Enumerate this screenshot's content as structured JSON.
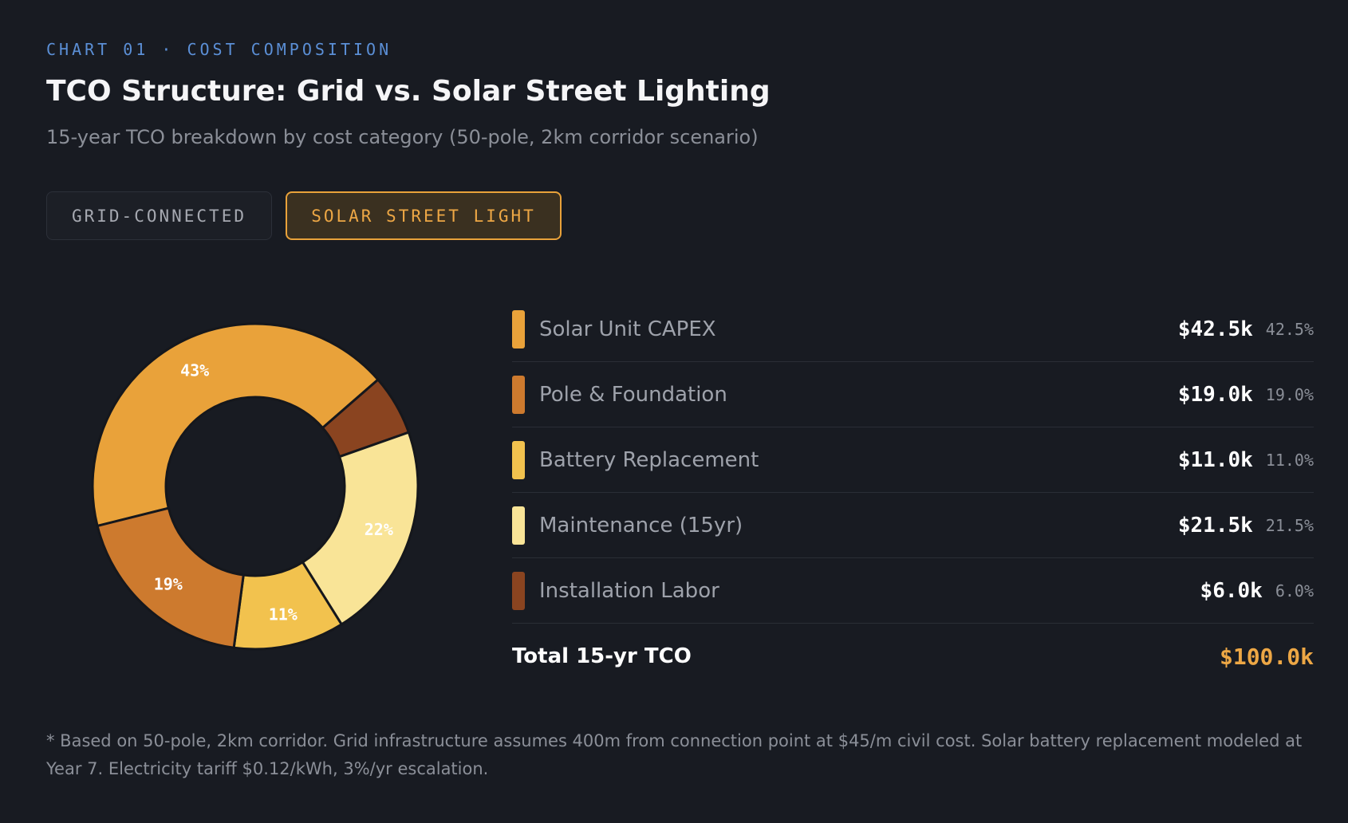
{
  "header": {
    "eyebrow": "CHART 01 · COST COMPOSITION",
    "title": "TCO Structure: Grid vs. Solar Street Lighting",
    "subtitle": "15-year TCO breakdown by cost category (50-pole, 2km corridor scenario)"
  },
  "tabs": [
    {
      "label": "GRID-CONNECTED",
      "active": false
    },
    {
      "label": "SOLAR STREET LIGHT",
      "active": true
    }
  ],
  "colors": {
    "accent": "#eda745",
    "background": "#181b22"
  },
  "chart_data": {
    "type": "pie",
    "categories": [
      "Solar Unit CAPEX",
      "Pole & Foundation",
      "Battery Replacement",
      "Maintenance (15yr)",
      "Installation Labor"
    ],
    "values": [
      42.5,
      19.0,
      11.0,
      21.5,
      6.0
    ],
    "colors": [
      "#e9a23a",
      "#cd7a2e",
      "#f2c24e",
      "#f9e497",
      "#8a4420"
    ],
    "slice_labels": [
      "43%",
      "19%",
      "11%",
      "22%",
      ""
    ]
  },
  "legend": {
    "rows": [
      {
        "label": "Solar Unit CAPEX",
        "value": "$42.5k",
        "pct": "42.5%",
        "color": "#e9a23a"
      },
      {
        "label": "Pole & Foundation",
        "value": "$19.0k",
        "pct": "19.0%",
        "color": "#cd7a2e"
      },
      {
        "label": "Battery Replacement",
        "value": "$11.0k",
        "pct": "11.0%",
        "color": "#f2c24e"
      },
      {
        "label": "Maintenance (15yr)",
        "value": "$21.5k",
        "pct": "21.5%",
        "color": "#f9e497"
      },
      {
        "label": "Installation Labor",
        "value": "$6.0k",
        "pct": "6.0%",
        "color": "#8a4420"
      }
    ],
    "total_label": "Total 15-yr TCO",
    "total_value": "$100.0k"
  },
  "footnote": "* Based on 50-pole, 2km corridor. Grid infrastructure assumes 400m from connection point at $45/m civil cost. Solar battery replacement modeled at Year 7. Electricity tariff $0.12/kWh, 3%/yr escalation."
}
